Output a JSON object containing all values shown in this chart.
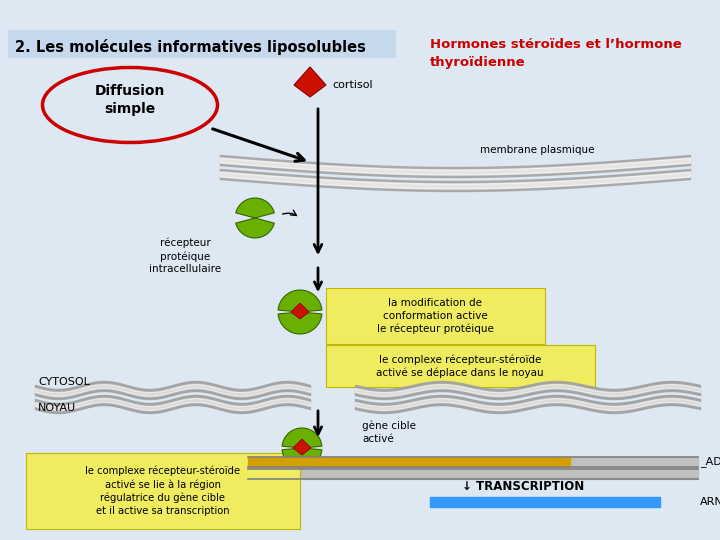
{
  "title": "2. Les molécules informatives liposolubles",
  "subtitle": "Hormones stéroïdes et l’hormone\nthyroïdienne",
  "diffusion_label": "Diffusion\nsimple",
  "cortisol_label": "cortisol",
  "membrane_label": "membrane plasmique",
  "receptor_label": "récepteur\nprotéique\nintracellulaire",
  "cytosol_label": "CYTOSOL",
  "noyau_label": "NOYAU",
  "gene_label": "gène cible\nactivé",
  "adn_label": "_ADN",
  "transcription_label": "↓ TRANSCRIPTION",
  "arn_label": "ARN",
  "box1_text": "la modification de\nconformation active\nle récepteur protéique",
  "box2_text": "le complexe récepteur-stéroïde\nactivé se déplace dans le noyau",
  "box3_text": "le complexe récepteur-stéroïde\nactivé se lie à la région\nrégulatrice du gène cible\net il active sa transcription",
  "bg_color": "#dde8f2",
  "title_bg": "#c5d8ec",
  "subtitle_color": "#cc0000",
  "yellow_box_color": "#f0ec60",
  "diffusion_circle_color": "#cc0000",
  "green_receptor_color": "#6ab000",
  "red_hormone_color": "#cc1100",
  "membrane_gray": "#a8a8a8",
  "adn_bar_gray": "#c0c0c0",
  "adn_bar_orange": "#d4a000",
  "arn_bar_color": "#3399ff"
}
